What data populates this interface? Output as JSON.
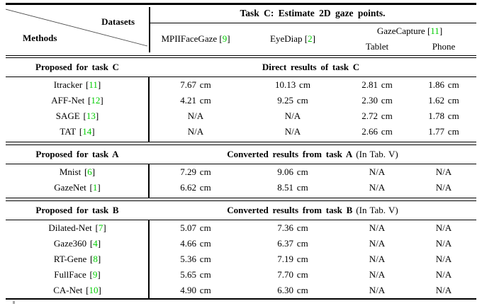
{
  "table": {
    "corner": {
      "top_right_label": "Datasets",
      "bottom_left_label": "Methods"
    },
    "title": "Task C: Estimate 2D gaze points.",
    "citation_brackets": {
      "open": "[",
      "close": "]"
    },
    "columns": {
      "datasets": [
        {
          "label": "MPIIFaceGaze",
          "cite": "9"
        },
        {
          "label": "EyeDiap",
          "cite": "2"
        },
        {
          "label": "GazeCapture",
          "cite": "11",
          "subcolumns": [
            "Tablet",
            "Phone"
          ]
        }
      ]
    },
    "sections": [
      {
        "left_header": "Proposed for task C",
        "right_header": "Direct results of task C",
        "right_header_note": "",
        "rows": [
          {
            "method": "Itracker",
            "cite": "11",
            "values": [
              "7.67 cm",
              "10.13 cm",
              "2.81 cm",
              "1.86 cm"
            ]
          },
          {
            "method": "AFF-Net",
            "cite": "12",
            "values": [
              "4.21 cm",
              "9.25 cm",
              "2.30 cm",
              "1.62 cm"
            ]
          },
          {
            "method": "SAGE",
            "cite": "13",
            "values": [
              "N/A",
              "N/A",
              "2.72 cm",
              "1.78 cm"
            ]
          },
          {
            "method": "TAT",
            "cite": "14",
            "values": [
              "N/A",
              "N/A",
              "2.66 cm",
              "1.77 cm"
            ]
          }
        ]
      },
      {
        "left_header": "Proposed for task A",
        "right_header": "Converted results from task A",
        "right_header_note": "(In Tab. V)",
        "rows": [
          {
            "method": "Mnist",
            "cite": "6",
            "values": [
              "7.29 cm",
              "9.06 cm",
              "N/A",
              "N/A"
            ]
          },
          {
            "method": "GazeNet",
            "cite": "1",
            "values": [
              "6.62 cm",
              "8.51 cm",
              "N/A",
              "N/A"
            ]
          }
        ]
      },
      {
        "left_header": "Proposed for task B",
        "right_header": "Converted results from task B",
        "right_header_note": "(In Tab. V)",
        "rows": [
          {
            "method": "Dilated-Net",
            "cite": "7",
            "values": [
              "5.07 cm",
              "7.36 cm",
              "N/A",
              "N/A"
            ]
          },
          {
            "method": "Gaze360",
            "cite": "4",
            "values": [
              "4.66 cm",
              "6.37 cm",
              "N/A",
              "N/A"
            ]
          },
          {
            "method": "RT-Gene",
            "cite": "8",
            "values": [
              "5.36 cm",
              "7.19 cm",
              "N/A",
              "N/A"
            ]
          },
          {
            "method": "FullFace",
            "cite": "9",
            "values": [
              "5.65 cm",
              "7.70 cm",
              "N/A",
              "N/A"
            ]
          },
          {
            "method": "CA-Net",
            "cite": "10",
            "values": [
              "4.90 cm",
              "6.30 cm",
              "N/A",
              "N/A"
            ]
          }
        ]
      }
    ]
  },
  "colors": {
    "citation_link": "#00cc00",
    "text": "#000000",
    "rule": "#000000",
    "background": "#ffffff"
  }
}
